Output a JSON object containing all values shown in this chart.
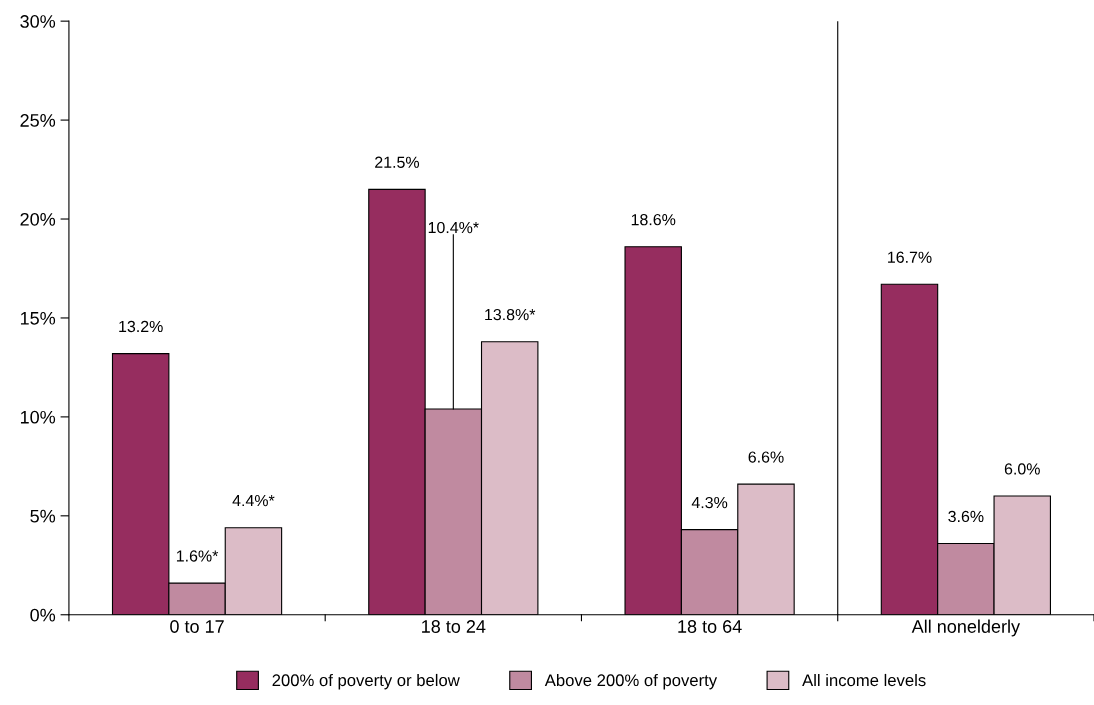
{
  "chart_data": {
    "type": "bar",
    "categories": [
      "0 to 17",
      "18 to 24",
      "18 to 64",
      "All nonelderly"
    ],
    "series": [
      {
        "name": "200% of poverty or below",
        "color": "#962d5f",
        "values": [
          13.2,
          21.5,
          18.6,
          16.7
        ],
        "value_labels": [
          "13.2%",
          "21.5%",
          "18.6%",
          "16.7%"
        ]
      },
      {
        "name": "Above 200% of poverty",
        "color": "#c08aa0",
        "values": [
          1.6,
          10.4,
          4.3,
          3.6
        ],
        "value_labels": [
          "1.6%*",
          "10.4%*",
          "4.3%",
          "3.6%"
        ]
      },
      {
        "name": "All income levels",
        "color": "#dcbcc7",
        "values": [
          4.4,
          13.8,
          6.6,
          6.0
        ],
        "value_labels": [
          "4.4%*",
          "13.8%*",
          "6.6%",
          "6.0%"
        ]
      }
    ],
    "ylim": [
      0,
      30
    ],
    "yticks": [
      {
        "value": 0,
        "label": "0%"
      },
      {
        "value": 5,
        "label": "5%"
      },
      {
        "value": 10,
        "label": "10%"
      },
      {
        "value": 15,
        "label": "15%"
      },
      {
        "value": 20,
        "label": "20%"
      },
      {
        "value": 25,
        "label": "25%"
      },
      {
        "value": 30,
        "label": "30%"
      }
    ],
    "grid": false,
    "legend": "bottom"
  }
}
